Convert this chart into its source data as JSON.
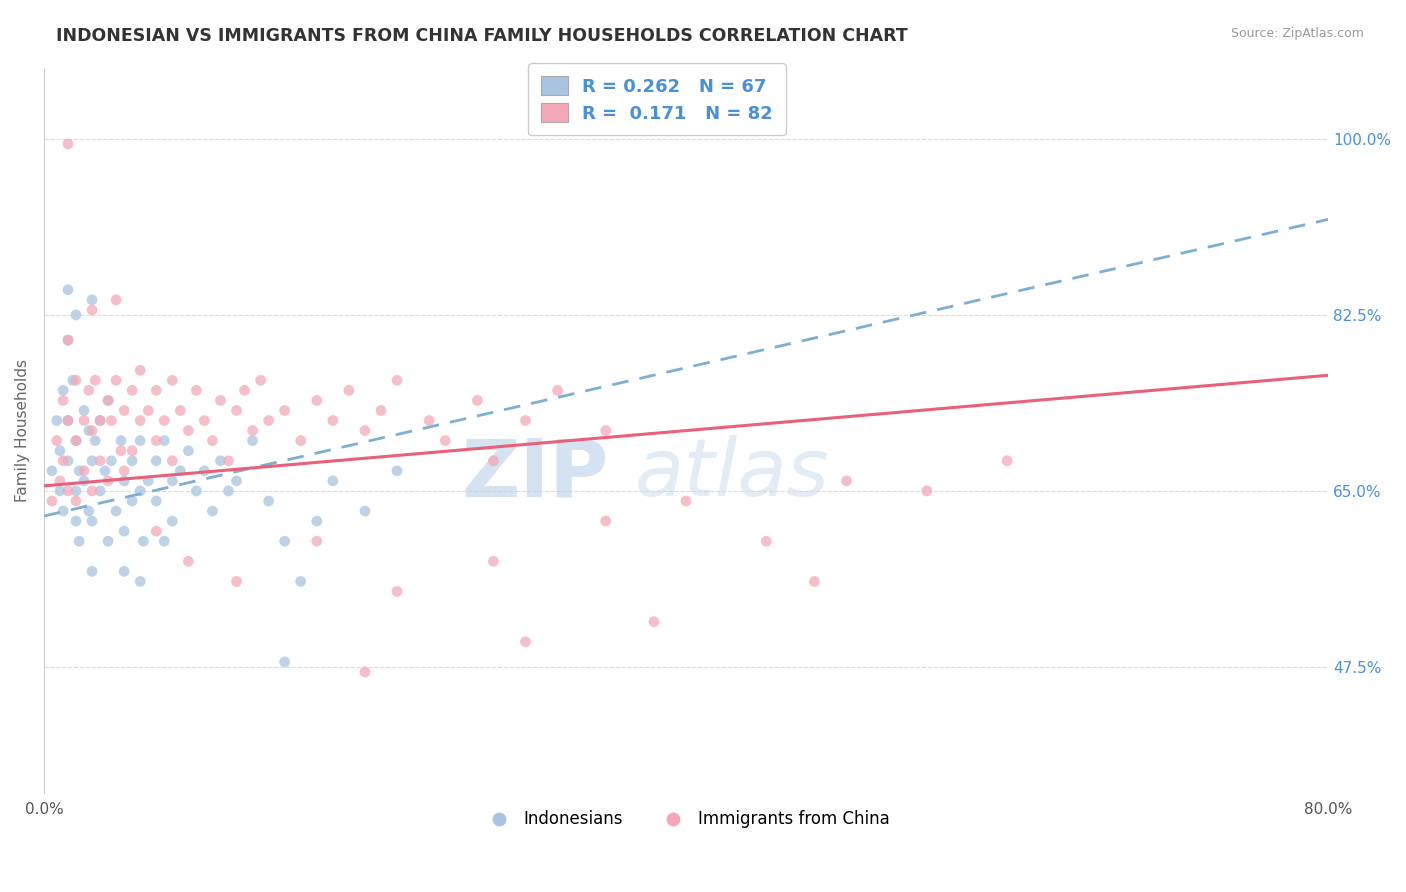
{
  "title": "INDONESIAN VS IMMIGRANTS FROM CHINA FAMILY HOUSEHOLDS CORRELATION CHART",
  "source": "Source: ZipAtlas.com",
  "ylabel": "Family Households",
  "xlim": [
    0.0,
    80.0
  ],
  "ylim": [
    35.0,
    107.0
  ],
  "yticks": [
    47.5,
    65.0,
    82.5,
    100.0
  ],
  "ytick_labels": [
    "47.5%",
    "65.0%",
    "82.5%",
    "100.0%"
  ],
  "xticks": [
    0.0,
    10.0,
    20.0,
    30.0,
    40.0,
    50.0,
    60.0,
    70.0,
    80.0
  ],
  "legend_r1": "R = 0.262   N = 67",
  "legend_r2": "R =  0.171   N = 82",
  "legend_label1": "Indonesians",
  "legend_label2": "Immigrants from China",
  "color_indonesian": "#a8c4e0",
  "color_china": "#f4a7b9",
  "color_trendline_indonesian": "#7bafd4",
  "color_trendline_china": "#e8607a",
  "background_color": "#ffffff",
  "grid_color": "#cccccc",
  "watermark_zip": "ZIP",
  "watermark_atlas": "atlas",
  "title_color": "#333333",
  "axis_label_color": "#666666",
  "trendline_indo_x0": 0.0,
  "trendline_indo_y0": 62.5,
  "trendline_indo_x1": 80.0,
  "trendline_indo_y1": 92.0,
  "trendline_china_x0": 0.0,
  "trendline_china_y0": 65.5,
  "trendline_china_x1": 80.0,
  "trendline_china_y1": 76.5,
  "indonesian_points": [
    [
      0.5,
      67.0
    ],
    [
      0.8,
      72.0
    ],
    [
      1.0,
      65.0
    ],
    [
      1.0,
      69.0
    ],
    [
      1.2,
      75.0
    ],
    [
      1.2,
      63.0
    ],
    [
      1.5,
      80.0
    ],
    [
      1.5,
      72.0
    ],
    [
      1.5,
      68.0
    ],
    [
      1.8,
      76.0
    ],
    [
      2.0,
      70.0
    ],
    [
      2.0,
      65.0
    ],
    [
      2.0,
      62.0
    ],
    [
      2.2,
      67.0
    ],
    [
      2.2,
      60.0
    ],
    [
      2.5,
      73.0
    ],
    [
      2.5,
      66.0
    ],
    [
      2.8,
      71.0
    ],
    [
      2.8,
      63.0
    ],
    [
      3.0,
      68.0
    ],
    [
      3.0,
      62.0
    ],
    [
      3.0,
      57.0
    ],
    [
      3.2,
      70.0
    ],
    [
      3.5,
      65.0
    ],
    [
      3.5,
      72.0
    ],
    [
      3.8,
      67.0
    ],
    [
      4.0,
      74.0
    ],
    [
      4.0,
      60.0
    ],
    [
      4.2,
      68.0
    ],
    [
      4.5,
      63.0
    ],
    [
      4.8,
      70.0
    ],
    [
      5.0,
      66.0
    ],
    [
      5.0,
      61.0
    ],
    [
      5.5,
      68.0
    ],
    [
      5.5,
      64.0
    ],
    [
      6.0,
      70.0
    ],
    [
      6.0,
      65.0
    ],
    [
      6.2,
      60.0
    ],
    [
      6.5,
      66.0
    ],
    [
      7.0,
      68.0
    ],
    [
      7.0,
      64.0
    ],
    [
      7.5,
      70.0
    ],
    [
      7.5,
      60.0
    ],
    [
      8.0,
      66.0
    ],
    [
      8.0,
      62.0
    ],
    [
      8.5,
      67.0
    ],
    [
      9.0,
      69.0
    ],
    [
      9.5,
      65.0
    ],
    [
      10.0,
      67.0
    ],
    [
      10.5,
      63.0
    ],
    [
      11.0,
      68.0
    ],
    [
      11.5,
      65.0
    ],
    [
      12.0,
      66.0
    ],
    [
      13.0,
      70.0
    ],
    [
      14.0,
      64.0
    ],
    [
      15.0,
      60.0
    ],
    [
      16.0,
      56.0
    ],
    [
      17.0,
      62.0
    ],
    [
      18.0,
      66.0
    ],
    [
      20.0,
      63.0
    ],
    [
      22.0,
      67.0
    ],
    [
      1.5,
      85.0
    ],
    [
      2.0,
      82.5
    ],
    [
      3.0,
      84.0
    ],
    [
      5.0,
      57.0
    ],
    [
      6.0,
      56.0
    ],
    [
      15.0,
      48.0
    ]
  ],
  "china_points": [
    [
      0.5,
      64.0
    ],
    [
      0.8,
      70.0
    ],
    [
      1.0,
      66.0
    ],
    [
      1.2,
      74.0
    ],
    [
      1.2,
      68.0
    ],
    [
      1.5,
      72.0
    ],
    [
      1.5,
      65.0
    ],
    [
      2.0,
      76.0
    ],
    [
      2.0,
      70.0
    ],
    [
      2.0,
      64.0
    ],
    [
      2.5,
      72.0
    ],
    [
      2.5,
      67.0
    ],
    [
      2.8,
      75.0
    ],
    [
      3.0,
      71.0
    ],
    [
      3.0,
      65.0
    ],
    [
      3.2,
      76.0
    ],
    [
      3.5,
      72.0
    ],
    [
      3.5,
      68.0
    ],
    [
      4.0,
      74.0
    ],
    [
      4.0,
      66.0
    ],
    [
      4.2,
      72.0
    ],
    [
      4.5,
      76.0
    ],
    [
      4.8,
      69.0
    ],
    [
      5.0,
      73.0
    ],
    [
      5.0,
      67.0
    ],
    [
      5.5,
      75.0
    ],
    [
      5.5,
      69.0
    ],
    [
      6.0,
      72.0
    ],
    [
      6.0,
      77.0
    ],
    [
      6.5,
      73.0
    ],
    [
      7.0,
      70.0
    ],
    [
      7.0,
      75.0
    ],
    [
      7.5,
      72.0
    ],
    [
      8.0,
      76.0
    ],
    [
      8.0,
      68.0
    ],
    [
      8.5,
      73.0
    ],
    [
      9.0,
      71.0
    ],
    [
      9.5,
      75.0
    ],
    [
      10.0,
      72.0
    ],
    [
      10.5,
      70.0
    ],
    [
      11.0,
      74.0
    ],
    [
      11.5,
      68.0
    ],
    [
      12.0,
      73.0
    ],
    [
      12.5,
      75.0
    ],
    [
      13.0,
      71.0
    ],
    [
      13.5,
      76.0
    ],
    [
      14.0,
      72.0
    ],
    [
      15.0,
      73.0
    ],
    [
      16.0,
      70.0
    ],
    [
      17.0,
      74.0
    ],
    [
      18.0,
      72.0
    ],
    [
      19.0,
      75.0
    ],
    [
      20.0,
      71.0
    ],
    [
      21.0,
      73.0
    ],
    [
      22.0,
      76.0
    ],
    [
      24.0,
      72.0
    ],
    [
      25.0,
      70.0
    ],
    [
      27.0,
      74.0
    ],
    [
      28.0,
      68.0
    ],
    [
      30.0,
      72.0
    ],
    [
      32.0,
      75.0
    ],
    [
      35.0,
      71.0
    ],
    [
      1.5,
      80.0
    ],
    [
      3.0,
      83.0
    ],
    [
      4.5,
      84.0
    ],
    [
      7.0,
      61.0
    ],
    [
      9.0,
      58.0
    ],
    [
      12.0,
      56.0
    ],
    [
      17.0,
      60.0
    ],
    [
      22.0,
      55.0
    ],
    [
      28.0,
      58.0
    ],
    [
      35.0,
      62.0
    ],
    [
      40.0,
      64.0
    ],
    [
      45.0,
      60.0
    ],
    [
      50.0,
      66.0
    ],
    [
      55.0,
      65.0
    ],
    [
      60.0,
      68.0
    ],
    [
      1.5,
      99.5
    ],
    [
      20.0,
      47.0
    ],
    [
      30.0,
      50.0
    ],
    [
      38.0,
      52.0
    ],
    [
      48.0,
      56.0
    ]
  ]
}
